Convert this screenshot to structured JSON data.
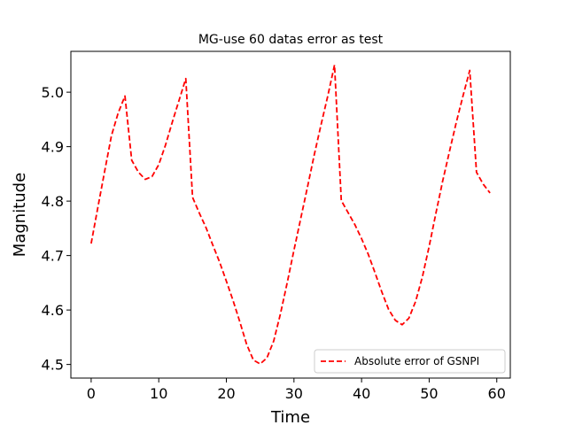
{
  "chart_data": {
    "type": "line",
    "title": "MG-use 60 datas error as test",
    "xlabel": "Time",
    "ylabel": "Magnitude",
    "xlim": [
      -3,
      62
    ],
    "ylim": [
      4.475,
      5.075
    ],
    "xticks": [
      0,
      10,
      20,
      30,
      40,
      50,
      60
    ],
    "yticks": [
      4.5,
      4.6,
      4.7,
      4.8,
      4.9,
      5.0
    ],
    "ytick_labels": [
      "4.5",
      "4.6",
      "4.7",
      "4.8",
      "4.9",
      "5.0"
    ],
    "grid": false,
    "legend_position": "lower-right",
    "series": [
      {
        "name": "Absolute error of GSNPI",
        "color": "#ff0000",
        "line_style": "dashed",
        "x": [
          0,
          1,
          2,
          3,
          4,
          5,
          6,
          7,
          8,
          9,
          10,
          11,
          12,
          13,
          14,
          15,
          16,
          17,
          18,
          19,
          20,
          21,
          22,
          23,
          24,
          25,
          26,
          27,
          28,
          29,
          30,
          31,
          32,
          33,
          34,
          35,
          36,
          37,
          38,
          39,
          40,
          41,
          42,
          43,
          44,
          45,
          46,
          47,
          48,
          49,
          50,
          51,
          52,
          53,
          54,
          55,
          56,
          57,
          58,
          59
        ],
        "values": [
          4.722,
          4.789,
          4.855,
          4.92,
          4.962,
          4.993,
          4.875,
          4.853,
          4.84,
          4.845,
          4.867,
          4.903,
          4.945,
          4.985,
          5.025,
          4.807,
          4.778,
          4.751,
          4.719,
          4.688,
          4.653,
          4.617,
          4.578,
          4.537,
          4.508,
          4.501,
          4.512,
          4.543,
          4.593,
          4.65,
          4.71,
          4.768,
          4.826,
          4.885,
          4.94,
          4.993,
          5.05,
          4.801,
          4.779,
          4.757,
          4.731,
          4.702,
          4.668,
          4.633,
          4.601,
          4.581,
          4.573,
          4.585,
          4.616,
          4.661,
          4.717,
          4.778,
          4.837,
          4.891,
          4.944,
          4.993,
          5.04,
          4.853,
          4.831,
          4.815
        ]
      }
    ]
  }
}
